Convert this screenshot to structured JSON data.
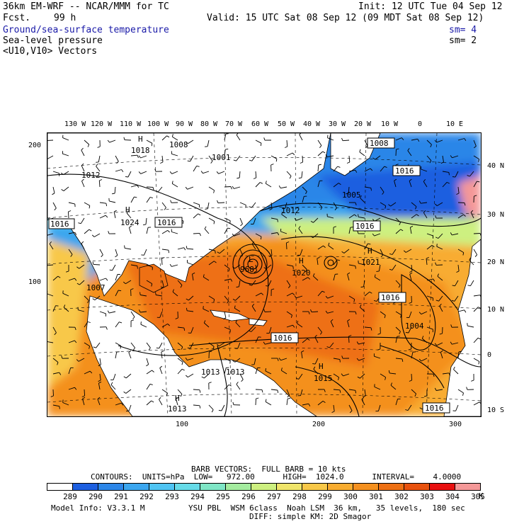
{
  "header": {
    "model_line": "36km EM-WRF -- NCAR/MMM for TC",
    "fcst_label": "Fcst.",
    "fcst_value": "99 h",
    "init": "Init: 12 UTC Tue 04 Sep 12",
    "valid": "Valid: 15 UTC Sat 08 Sep 12 (09 MDT Sat 08 Sep 12)",
    "fields": [
      {
        "name": "Ground/sea-surface temperature",
        "sm": "sm= 4",
        "color": "#1a1aa8"
      },
      {
        "name": "Sea-level pressure",
        "sm": "sm= 2",
        "color": "#000000"
      },
      {
        "name": "<U10,V10> Vectors",
        "sm": "",
        "color": "#000000"
      }
    ]
  },
  "axes": {
    "top_lon": [
      "130 W",
      "120 W",
      "110 W",
      "100 W",
      "90 W",
      "80 W",
      "70 W",
      "60 W",
      "50 W",
      "40 W",
      "30 W",
      "20 W",
      "10 W",
      "0",
      "10 E"
    ],
    "right_lat": [
      "40 N",
      "30 N",
      "20 N",
      "10 N",
      "0",
      "10 S"
    ],
    "left_grid": [
      "200",
      "100"
    ],
    "bottom_grid": [
      "100",
      "200",
      "300"
    ]
  },
  "map_labels": {
    "pressure_boxes": [
      "1008",
      "1016",
      "1016",
      "1016",
      "1016",
      "1016",
      "1016",
      "1016"
    ],
    "contour_values": [
      "1018",
      "1008",
      "1001",
      "1012",
      "1005",
      "1012",
      "1024",
      "1016",
      "1020",
      "1021",
      "1007",
      "1004",
      "1015",
      "1013",
      "1013",
      "1013",
      "968"
    ],
    "centers": [
      "H",
      "H",
      "H",
      "H",
      "L",
      "L",
      "H",
      "L",
      "H",
      "L",
      "H",
      "H"
    ]
  },
  "footer": {
    "barb": "BARB VECTORS:  FULL BARB = 10 kts",
    "contours": "CONTOURS:  UNITS=hPa  LOW=   972.00      HIGH=  1024.0      INTERVAL=    4.0000",
    "model_info": "Model Info: V3.3.1 M",
    "physics": "YSU PBL  WSM 6class  Noah LSM  36 km,   35 levels,  180 sec",
    "physics2": "DIFF: simple KM: 2D Smagor"
  },
  "legend": {
    "unit": "K",
    "bins": [
      {
        "label": "289",
        "color": "#ffffff"
      },
      {
        "label": "290",
        "color": "#1d5fe0"
      },
      {
        "label": "291",
        "color": "#2c86e8"
      },
      {
        "label": "292",
        "color": "#3ba6ef"
      },
      {
        "label": "293",
        "color": "#4fc4f3"
      },
      {
        "label": "294",
        "color": "#66dbe8"
      },
      {
        "label": "295",
        "color": "#7fe6c6"
      },
      {
        "label": "296",
        "color": "#a4ec9f"
      },
      {
        "label": "297",
        "color": "#cdf080"
      },
      {
        "label": "298",
        "color": "#f0e56a"
      },
      {
        "label": "299",
        "color": "#f8c848"
      },
      {
        "label": "300",
        "color": "#f8ac30"
      },
      {
        "label": "301",
        "color": "#f4901f"
      },
      {
        "label": "302",
        "color": "#ee7014"
      },
      {
        "label": "303",
        "color": "#e8520e"
      },
      {
        "label": "304",
        "color": "#e81010"
      },
      {
        "label": "305",
        "color": "#f49898"
      }
    ]
  }
}
